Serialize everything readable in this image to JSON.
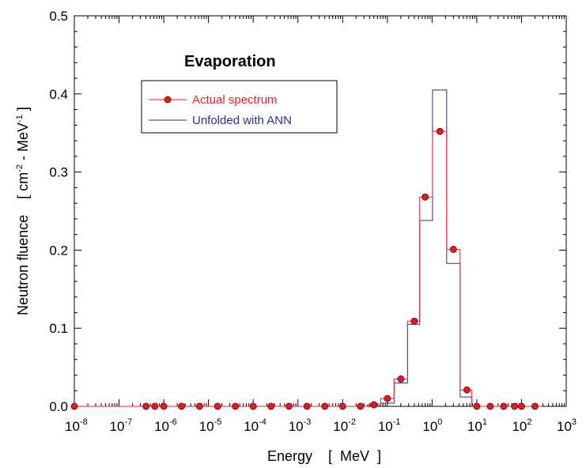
{
  "chart_data": {
    "type": "line",
    "title": "Evaporation",
    "xlabel": "Energy    [  MeV  ]",
    "ylabel_main": "Neutron fluence",
    "ylabel_unit": "[ cm",
    "ylabel_unit_exp1": "-2",
    "ylabel_unit_mid": " - MeV",
    "ylabel_unit_exp2": "-1",
    "ylabel_unit_end": " ]",
    "x_scale": "log",
    "xlim": [
      1e-08,
      1000
    ],
    "ylim": [
      0,
      0.5
    ],
    "x_ticks": [
      {
        "base": "10",
        "exp": "-8"
      },
      {
        "base": "10",
        "exp": "-7"
      },
      {
        "base": "10",
        "exp": "-6"
      },
      {
        "base": "10",
        "exp": "-5"
      },
      {
        "base": "10",
        "exp": "-4"
      },
      {
        "base": "10",
        "exp": "-3"
      },
      {
        "base": "10",
        "exp": "-2"
      },
      {
        "base": "10",
        "exp": "-1"
      },
      {
        "base": "10",
        "exp": "0"
      },
      {
        "base": "10",
        "exp": "1"
      },
      {
        "base": "10",
        "exp": "2"
      },
      {
        "base": "10",
        "exp": "3"
      }
    ],
    "y_ticks": [
      "0.0",
      "0.1",
      "0.2",
      "0.3",
      "0.4",
      "0.5"
    ],
    "legend_position": "upper-left",
    "series": [
      {
        "name": "Actual spectrum",
        "color": "#e8202a",
        "marker": "circle",
        "energy_MeV": [
          1e-08,
          4e-07,
          6.3e-07,
          1e-06,
          2.5e-06,
          6.3e-06,
          1.6e-05,
          4e-05,
          0.0001,
          0.00025,
          0.00063,
          0.0016,
          0.004,
          0.01,
          0.025,
          0.05,
          0.1,
          0.2,
          0.4,
          0.7,
          1.5,
          3,
          6,
          10,
          20,
          40,
          70,
          100,
          200
        ],
        "fluence": [
          0.0,
          0.0,
          0.0,
          0.0,
          0.0,
          0.0,
          0.0,
          0.0,
          0.0,
          0.0,
          0.0,
          0.0,
          0.0,
          0.0,
          0.0,
          0.002,
          0.01,
          0.035,
          0.109,
          0.268,
          0.352,
          0.201,
          0.021,
          0.0,
          0.0,
          0.0,
          0.0,
          0.0,
          0.0
        ]
      },
      {
        "name": "Unfolded with ANN",
        "color": "#2e2a9a",
        "marker": "none",
        "energy_MeV": [
          0.1,
          0.2,
          0.4,
          0.7,
          1.5,
          3,
          6,
          10
        ],
        "fluence": [
          0.004,
          0.03,
          0.105,
          0.238,
          0.405,
          0.183,
          0.012,
          0.0
        ]
      }
    ]
  }
}
